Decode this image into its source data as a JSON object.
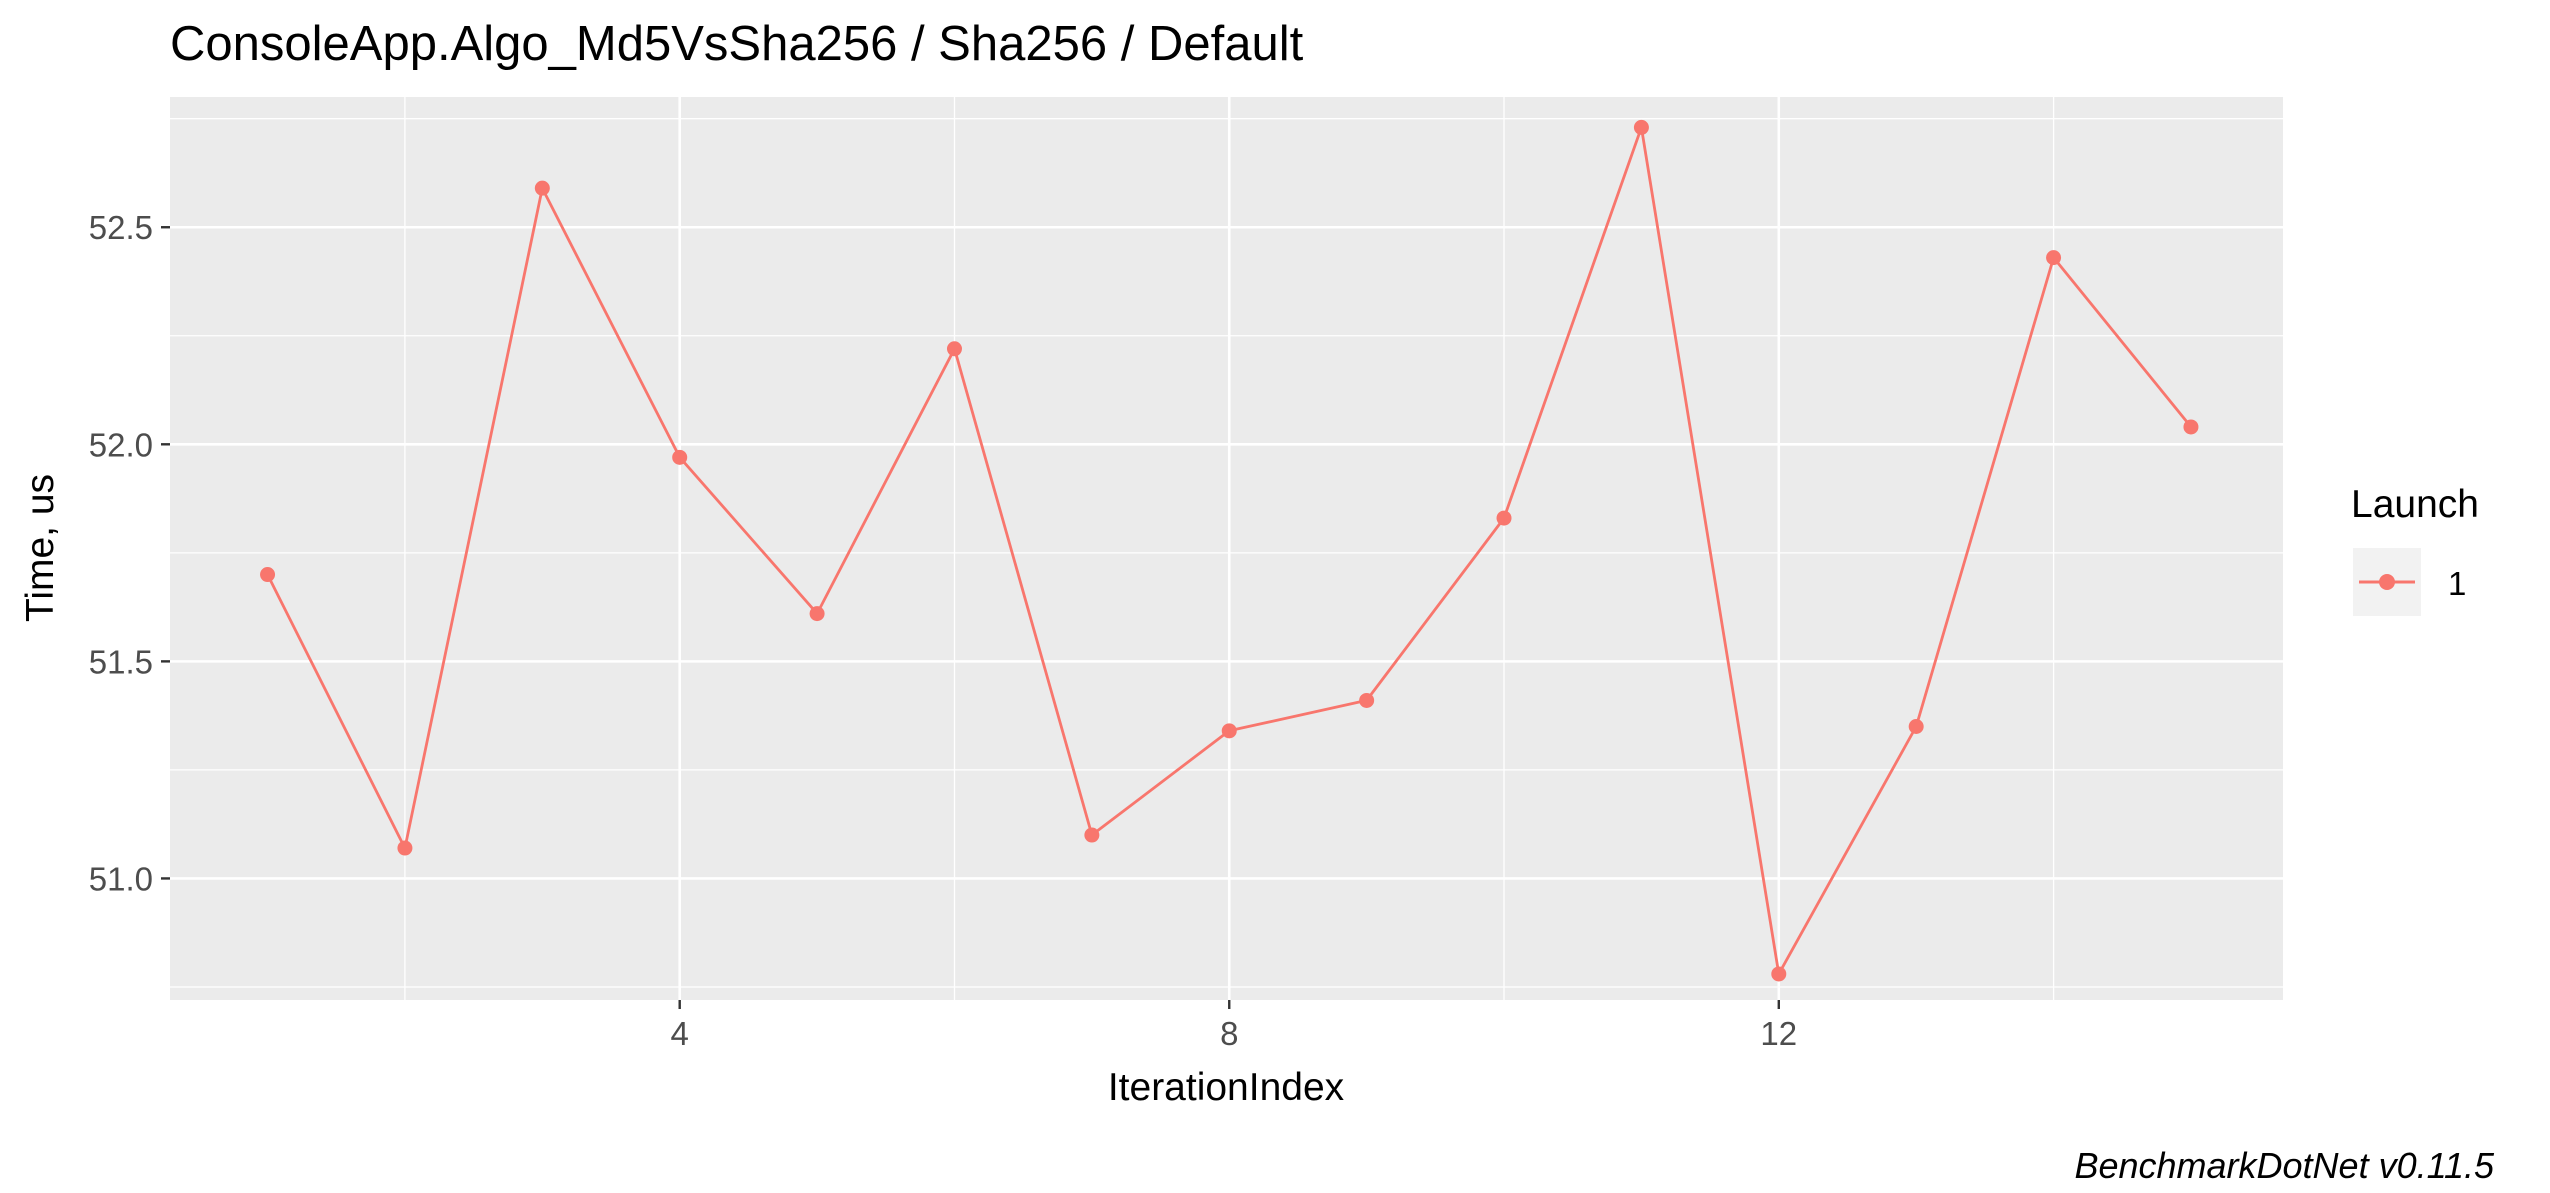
{
  "chart_data": {
    "type": "line",
    "title": "ConsoleApp.Algo_Md5VsSha256 / Sha256 / Default",
    "xlabel": "IterationIndex",
    "ylabel": "Time, us",
    "caption": "BenchmarkDotNet v0.11.5",
    "x_ticks": [
      "4",
      "8",
      "12"
    ],
    "y_ticks": [
      "51.0",
      "51.5",
      "52.0",
      "52.5"
    ],
    "xlim": [
      0.29,
      15.67
    ],
    "ylim": [
      50.72,
      52.8
    ],
    "grid": true,
    "background_color": "#ebebeb",
    "series_color": "#f8766d",
    "legend": {
      "title": "Launch",
      "position": "right",
      "entries": [
        "1"
      ]
    },
    "series": [
      {
        "name": "1",
        "x": [
          1,
          2,
          3,
          4,
          5,
          6,
          7,
          8,
          9,
          10,
          11,
          12,
          13,
          14,
          15
        ],
        "y": [
          51.7,
          51.07,
          52.59,
          51.97,
          51.61,
          52.22,
          51.1,
          51.34,
          51.41,
          51.83,
          52.73,
          50.78,
          51.35,
          52.43,
          52.04
        ]
      }
    ]
  }
}
